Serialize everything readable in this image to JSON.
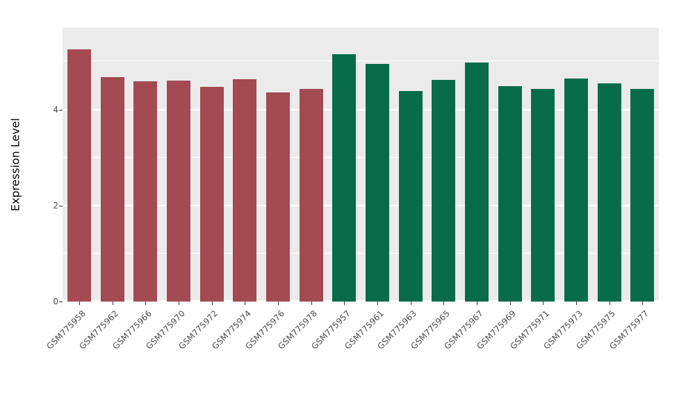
{
  "chart_data": {
    "type": "bar",
    "title": "",
    "xlabel": "",
    "ylabel": "Expression Level",
    "categories": [
      "GSM775958",
      "GSM775962",
      "GSM775966",
      "GSM775970",
      "GSM775972",
      "GSM775974",
      "GSM775976",
      "GSM775978",
      "GSM775957",
      "GSM775961",
      "GSM775963",
      "GSM775965",
      "GSM775967",
      "GSM775969",
      "GSM775971",
      "GSM775973",
      "GSM775975",
      "GSM775977"
    ],
    "values": [
      5.25,
      4.68,
      4.58,
      4.6,
      4.47,
      4.63,
      4.35,
      4.42,
      5.15,
      4.95,
      4.38,
      4.62,
      4.97,
      4.48,
      4.42,
      4.65,
      4.55,
      4.42
    ],
    "groups": [
      "group1",
      "group1",
      "group1",
      "group1",
      "group1",
      "group1",
      "group1",
      "group1",
      "group2",
      "group2",
      "group2",
      "group2",
      "group2",
      "group2",
      "group2",
      "group2",
      "group2",
      "group2"
    ],
    "group_colors": {
      "group1": "#A34A52",
      "group2": "#066C49"
    },
    "yticks": [
      0,
      2,
      4
    ],
    "minor_gridlines": [
      1,
      3,
      5
    ],
    "ylim": [
      0,
      5.7
    ],
    "panel_background": "#EBEBEB",
    "gridline_color": "#FFFFFF",
    "legend": "none",
    "grid": "on"
  }
}
